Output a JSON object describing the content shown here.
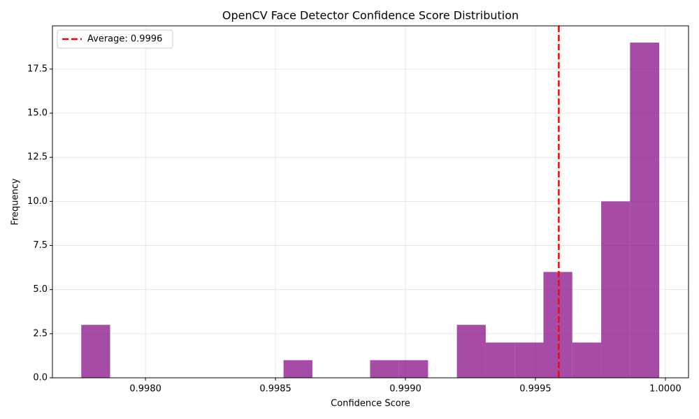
{
  "chart_data": {
    "type": "histogram",
    "title": "OpenCV Face Detector Confidence Score Distribution",
    "x_label": "Confidence Score",
    "y_label": "Frequency",
    "bins": [
      0.997753,
      0.997864,
      0.997975,
      0.998086,
      0.998198,
      0.998309,
      0.99842,
      0.998531,
      0.998642,
      0.998753,
      0.998864,
      0.998975,
      0.999087,
      0.999198,
      0.999309,
      0.99942,
      0.999531,
      0.999642,
      0.999753,
      0.999864,
      0.999976
    ],
    "counts": [
      3,
      0,
      0,
      0,
      0,
      0,
      0,
      1,
      0,
      0,
      1,
      1,
      0,
      3,
      2,
      2,
      6,
      2,
      10,
      19
    ],
    "color": "purple",
    "alpha": 0.7,
    "reference_line": {
      "name": "Average: 0.9996",
      "value": 0.99959,
      "color": "red"
    },
    "xlim": [
      0.997642,
      1.000089
    ],
    "xticks": [
      {
        "value": 0.998,
        "label": "0.9980"
      },
      0.9985,
      {
        "value": 0.999,
        "label": "0.9990"
      },
      0.9995,
      {
        "value": 1.0,
        "label": "1.0000"
      }
    ],
    "ylim": [
      0,
      19.95
    ],
    "yticks": [
      {
        "value": 0,
        "label": "0.0"
      },
      2.5,
      {
        "value": 5,
        "label": "5.0"
      },
      7.5,
      {
        "value": 10,
        "label": "10.0"
      },
      12.5,
      {
        "value": 15,
        "label": "15.0"
      },
      17.5
    ],
    "grid": true,
    "legend": "upper left"
  }
}
